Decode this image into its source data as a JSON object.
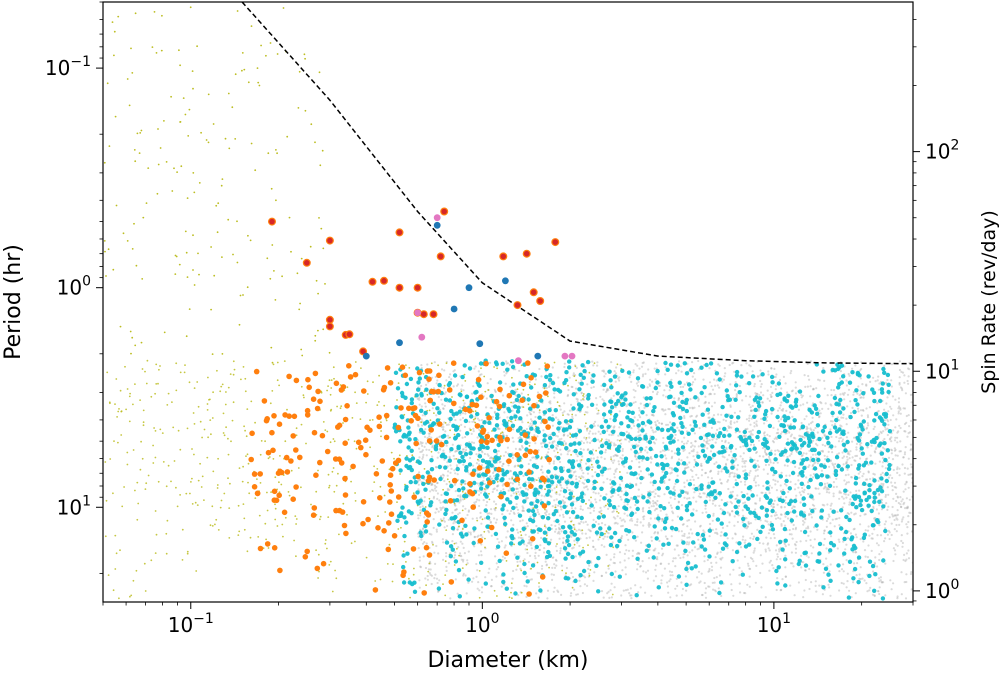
{
  "chart_data": {
    "type": "scatter",
    "x_scale": "log",
    "y_scale": "log",
    "xlabel": "Diameter (km)",
    "ylabel": "Period (hr)",
    "ylabel_right": "Spin Rate (rev/day)",
    "xlim": [
      0.05,
      30
    ],
    "ylim": [
      27,
      0.05
    ],
    "right_ylim": [
      0.89,
      480
    ],
    "x_ticks": [
      {
        "value": 0.1,
        "base": "10",
        "exp": "−1"
      },
      {
        "value": 1,
        "label": "10",
        "exp": "0"
      },
      {
        "value": 10,
        "base": "10",
        "exp": "1"
      }
    ],
    "y_ticks": [
      {
        "value": 0.1,
        "base": "10",
        "exp": "−1"
      },
      {
        "value": 1,
        "label": "10",
        "exp": "0"
      },
      {
        "value": 10,
        "base": "10",
        "exp": "1"
      }
    ],
    "right_ticks": [
      {
        "value": 100,
        "base": "10",
        "exp": "2"
      },
      {
        "value": 10,
        "base": "10",
        "exp": "1"
      },
      {
        "value": 1,
        "base": "10",
        "exp": "0"
      }
    ],
    "colors": {
      "background_points": "#b0b0b0",
      "olive": "#bcbd22",
      "cyan": "#17becf",
      "orange": "#ff7f0e",
      "red": "#d62728",
      "red_edge": "#ff7f0e",
      "blue": "#1f77b4",
      "pink": "#e377c2",
      "limit_line": "#000000"
    },
    "spin_limit_curve": {
      "style": "dashed",
      "points": [
        [
          0.15,
          0.05
        ],
        [
          0.3,
          0.14
        ],
        [
          0.6,
          0.45
        ],
        [
          1.0,
          0.95
        ],
        [
          2.0,
          1.75
        ],
        [
          4.0,
          2.05
        ],
        [
          8.0,
          2.15
        ],
        [
          15.0,
          2.2
        ],
        [
          30.0,
          2.22
        ]
      ]
    },
    "series": [
      {
        "key": "red",
        "points": [
          [
            0.19,
            0.5
          ],
          [
            0.25,
            0.77
          ],
          [
            0.3,
            0.61
          ],
          [
            0.3,
            1.4
          ],
          [
            0.3,
            1.5
          ],
          [
            0.34,
            1.64
          ],
          [
            0.35,
            1.63
          ],
          [
            0.39,
            1.95
          ],
          [
            0.42,
            0.94
          ],
          [
            0.46,
            0.93
          ],
          [
            0.52,
            0.56
          ],
          [
            0.52,
            1.0
          ],
          [
            0.6,
            1.0
          ],
          [
            0.6,
            1.3
          ],
          [
            0.63,
            1.32
          ],
          [
            0.68,
            1.32
          ],
          [
            0.72,
            0.72
          ],
          [
            0.74,
            0.45
          ],
          [
            1.18,
            0.72
          ],
          [
            1.32,
            1.2
          ],
          [
            1.42,
            0.7
          ],
          [
            1.5,
            1.05
          ],
          [
            1.58,
            1.15
          ],
          [
            1.78,
            0.62
          ]
        ]
      },
      {
        "key": "blue",
        "points": [
          [
            0.4,
            2.05
          ],
          [
            0.52,
            1.78
          ],
          [
            0.7,
            0.52
          ],
          [
            0.9,
            1.0
          ],
          [
            0.8,
            1.25
          ],
          [
            1.2,
            0.93
          ],
          [
            1.55,
            2.05
          ],
          [
            0.98,
            1.8
          ]
        ]
      },
      {
        "key": "pink",
        "points": [
          [
            0.7,
            0.48
          ],
          [
            0.6,
            1.3
          ],
          [
            0.62,
            1.68
          ],
          [
            1.33,
            2.15
          ],
          [
            1.92,
            2.05
          ],
          [
            2.03,
            2.05
          ]
        ]
      }
    ]
  }
}
